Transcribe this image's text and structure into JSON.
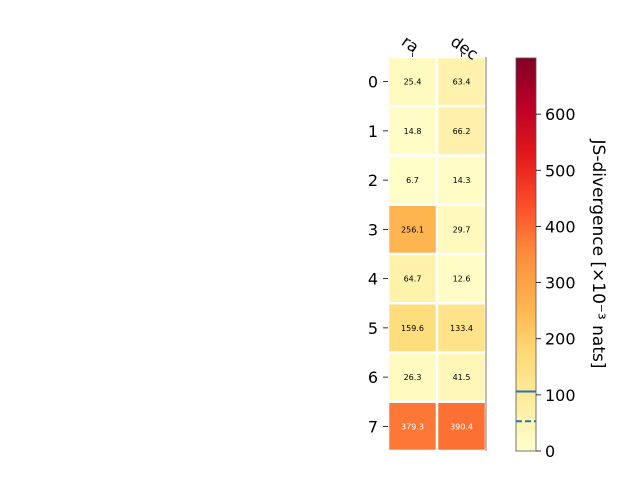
{
  "chart_data": {
    "type": "heatmap",
    "title": "",
    "columns": [
      "ra",
      "dec"
    ],
    "rows": [
      "0",
      "1",
      "2",
      "3",
      "4",
      "5",
      "6",
      "7"
    ],
    "values": [
      [
        25.4,
        63.4
      ],
      [
        14.8,
        66.2
      ],
      [
        6.7,
        14.3
      ],
      [
        256.1,
        29.7
      ],
      [
        64.7,
        12.6
      ],
      [
        159.6,
        133.4
      ],
      [
        26.3,
        41.5
      ],
      [
        379.3,
        390.4
      ]
    ],
    "cell_labels": [
      [
        "25.4",
        "63.4"
      ],
      [
        "14.8",
        "66.2"
      ],
      [
        "6.7",
        "14.3"
      ],
      [
        "256.1",
        "29.7"
      ],
      [
        "64.7",
        "12.6"
      ],
      [
        "159.6",
        "133.4"
      ],
      [
        "26.3",
        "41.5"
      ],
      [
        "379.3",
        "390.4"
      ]
    ],
    "colormap": "YlOrRd",
    "colorbar": {
      "label": "JS-divergence [×10⁻³ nats]",
      "range": [
        0,
        700
      ],
      "ticks": [
        "0",
        "100",
        "200",
        "300",
        "400",
        "500",
        "600"
      ],
      "tick_values": [
        0,
        100,
        200,
        300,
        400,
        500,
        600
      ],
      "marker_lines": [
        {
          "value": 106,
          "style": "solid",
          "color": "#1f77b4"
        },
        {
          "value": 53,
          "style": "dashed",
          "color": "#1f77b4"
        }
      ]
    }
  }
}
